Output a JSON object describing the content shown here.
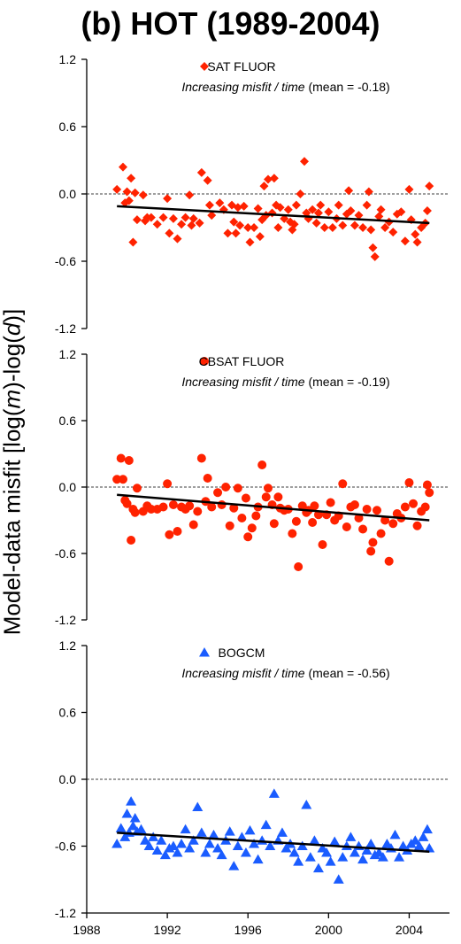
{
  "figure": {
    "title": "(b) HOT (1989-2004)",
    "ylabel_prefix": "Model-data misfit [log(",
    "ylabel_m": "m",
    "ylabel_mid": ")-log(",
    "ylabel_d": "d",
    "ylabel_suffix": ")]"
  },
  "chart_data": [
    {
      "type": "scatter",
      "marker": "diamond",
      "color": "#ff2200",
      "legend": "SAT FLUOR",
      "annotation_italic": "Increasing misfit / time",
      "annotation_rest": " (mean = -0.18)",
      "xlim": [
        1988,
        2006
      ],
      "ylim": [
        -1.2,
        1.2
      ],
      "yticks": [
        "1.2",
        "0.6",
        "0.0",
        "-0.6",
        "-1.2"
      ],
      "ytick_values": [
        1.2,
        0.6,
        0.0,
        -0.6,
        -1.2
      ],
      "zero_line": true,
      "trend": {
        "x": [
          1989.5,
          2005
        ],
        "y": [
          -0.11,
          -0.26
        ]
      },
      "x": [
        1989.5,
        1989.8,
        1989.9,
        1990.0,
        1990.1,
        1990.2,
        1990.3,
        1990.4,
        1990.5,
        1990.8,
        1990.9,
        1991.0,
        1991.2,
        1991.5,
        1991.8,
        1992.0,
        1992.1,
        1992.3,
        1992.5,
        1992.7,
        1992.9,
        1993.1,
        1993.2,
        1993.3,
        1993.6,
        1993.7,
        1994.0,
        1994.1,
        1994.2,
        1994.6,
        1994.8,
        1995.0,
        1995.2,
        1995.3,
        1995.4,
        1995.5,
        1995.6,
        1995.8,
        1996.0,
        1996.1,
        1996.3,
        1996.5,
        1996.6,
        1996.7,
        1996.8,
        1996.9,
        1997.0,
        1997.2,
        1997.3,
        1997.4,
        1997.5,
        1997.6,
        1997.8,
        1998.0,
        1998.1,
        1998.2,
        1998.3,
        1998.4,
        1998.6,
        1998.8,
        1998.9,
        1999.0,
        1999.2,
        1999.4,
        1999.5,
        1999.6,
        1999.8,
        2000.0,
        2000.2,
        2000.4,
        2000.5,
        2000.7,
        2000.9,
        2001.0,
        2001.1,
        2001.3,
        2001.5,
        2001.7,
        2001.9,
        2002.0,
        2002.1,
        2002.2,
        2002.3,
        2002.5,
        2002.6,
        2002.8,
        2003.0,
        2003.2,
        2003.4,
        2003.6,
        2003.8,
        2004.0,
        2004.1,
        2004.3,
        2004.4,
        2004.6,
        2004.8,
        2004.9,
        2005.0
      ],
      "y": [
        0.04,
        0.24,
        -0.08,
        0.02,
        -0.06,
        0.14,
        -0.43,
        0.01,
        -0.23,
        -0.01,
        -0.24,
        -0.21,
        -0.21,
        -0.27,
        -0.21,
        -0.04,
        -0.35,
        -0.22,
        -0.4,
        -0.27,
        -0.21,
        -0.01,
        -0.28,
        -0.22,
        -0.26,
        0.19,
        0.12,
        -0.1,
        -0.19,
        -0.08,
        -0.14,
        -0.35,
        -0.1,
        -0.25,
        -0.35,
        -0.12,
        -0.28,
        -0.11,
        -0.3,
        -0.43,
        -0.3,
        -0.13,
        -0.38,
        -0.23,
        0.07,
        -0.19,
        0.13,
        -0.17,
        0.14,
        -0.1,
        -0.3,
        -0.12,
        -0.22,
        -0.14,
        -0.25,
        -0.32,
        -0.27,
        -0.1,
        0.0,
        0.29,
        -0.17,
        -0.22,
        -0.14,
        -0.26,
        -0.17,
        -0.1,
        -0.3,
        -0.16,
        -0.3,
        -0.22,
        -0.1,
        -0.28,
        -0.18,
        0.03,
        -0.15,
        -0.28,
        -0.19,
        -0.3,
        -0.1,
        0.02,
        -0.32,
        -0.48,
        -0.56,
        -0.2,
        -0.14,
        -0.3,
        -0.25,
        -0.34,
        -0.18,
        -0.16,
        -0.42,
        0.04,
        -0.23,
        -0.36,
        -0.43,
        -0.3,
        -0.26,
        -0.15,
        0.07
      ]
    },
    {
      "type": "scatter",
      "marker": "circle",
      "color": "#ff2200",
      "legend": "CBSAT FLUOR",
      "annotation_italic": "Increasing misfit / time",
      "annotation_rest": " (mean = -0.19)",
      "xlim": [
        1988,
        2006
      ],
      "ylim": [
        -1.2,
        1.2
      ],
      "yticks": [
        "1.2",
        "0.6",
        "0.0",
        "-0.6",
        "-1.2"
      ],
      "ytick_values": [
        1.2,
        0.6,
        0.0,
        -0.6,
        -1.2
      ],
      "zero_line": true,
      "trend": {
        "x": [
          1989.5,
          2005
        ],
        "y": [
          -0.07,
          -0.3
        ]
      },
      "x": [
        1989.5,
        1989.7,
        1989.8,
        1989.9,
        1990.0,
        1990.1,
        1990.2,
        1990.3,
        1990.4,
        1990.5,
        1990.8,
        1991.0,
        1991.2,
        1991.5,
        1991.8,
        1992.0,
        1992.1,
        1992.3,
        1992.5,
        1992.7,
        1992.9,
        1993.1,
        1993.3,
        1993.5,
        1993.7,
        1993.9,
        1994.0,
        1994.2,
        1994.5,
        1994.7,
        1994.9,
        1995.1,
        1995.3,
        1995.5,
        1995.7,
        1995.9,
        1996.0,
        1996.2,
        1996.4,
        1996.5,
        1996.7,
        1996.9,
        1997.0,
        1997.2,
        1997.3,
        1997.5,
        1997.6,
        1997.8,
        1998.0,
        1998.2,
        1998.4,
        1998.5,
        1998.7,
        1998.9,
        1999.0,
        1999.2,
        1999.3,
        1999.5,
        1999.7,
        1999.9,
        2000.1,
        2000.3,
        2000.5,
        2000.7,
        2000.9,
        2001.1,
        2001.3,
        2001.5,
        2001.7,
        2001.9,
        2002.1,
        2002.2,
        2002.4,
        2002.6,
        2002.8,
        2003.0,
        2003.2,
        2003.4,
        2003.6,
        2003.8,
        2004.0,
        2004.2,
        2004.4,
        2004.6,
        2004.8,
        2004.9,
        2005.0
      ],
      "y": [
        0.07,
        0.26,
        0.07,
        -0.12,
        -0.15,
        0.24,
        -0.48,
        -0.2,
        -0.23,
        -0.01,
        -0.22,
        -0.17,
        -0.2,
        -0.2,
        -0.18,
        0.03,
        -0.43,
        -0.16,
        -0.4,
        -0.18,
        -0.2,
        -0.17,
        -0.34,
        -0.22,
        0.26,
        -0.13,
        0.08,
        -0.18,
        -0.05,
        -0.16,
        0.0,
        -0.35,
        -0.19,
        -0.01,
        -0.28,
        -0.1,
        -0.45,
        -0.37,
        -0.26,
        -0.18,
        0.2,
        -0.09,
        -0.01,
        -0.16,
        -0.33,
        -0.09,
        -0.19,
        -0.21,
        -0.2,
        -0.42,
        -0.31,
        -0.72,
        -0.17,
        -0.23,
        -0.21,
        -0.32,
        -0.17,
        -0.25,
        -0.52,
        -0.25,
        -0.14,
        -0.3,
        -0.26,
        0.03,
        -0.36,
        -0.18,
        -0.16,
        -0.28,
        -0.38,
        -0.2,
        -0.58,
        -0.5,
        -0.21,
        -0.42,
        -0.3,
        -0.67,
        -0.33,
        -0.24,
        -0.28,
        -0.18,
        0.04,
        -0.15,
        -0.35,
        -0.22,
        -0.18,
        0.02,
        -0.05
      ]
    },
    {
      "type": "scatter",
      "marker": "triangle",
      "color": "#1a5cff",
      "legend": "BOGCM",
      "annotation_italic": "Increasing misfit / time",
      "annotation_rest": " (mean = -0.56)",
      "xlim": [
        1988,
        2006
      ],
      "ylim": [
        -1.2,
        1.2
      ],
      "yticks": [
        "1.2",
        "0.6",
        "0.0",
        "-0.6",
        "-1.2"
      ],
      "ytick_values": [
        1.2,
        0.6,
        0.0,
        -0.6,
        -1.2
      ],
      "xtick_values": [
        1988,
        1992,
        1996,
        2000,
        2004
      ],
      "xtick_labels": [
        "1988",
        "1992",
        "1996",
        "2000",
        "2004"
      ],
      "zero_line": true,
      "trend": {
        "x": [
          1989.5,
          2005
        ],
        "y": [
          -0.48,
          -0.65
        ]
      },
      "x": [
        1989.5,
        1989.7,
        1989.9,
        1990.0,
        1990.1,
        1990.2,
        1990.3,
        1990.4,
        1990.5,
        1990.7,
        1990.9,
        1991.1,
        1991.3,
        1991.5,
        1991.7,
        1991.9,
        1992.1,
        1992.3,
        1992.5,
        1992.7,
        1992.9,
        1993.1,
        1993.3,
        1993.5,
        1993.7,
        1993.9,
        1994.1,
        1994.3,
        1994.5,
        1994.7,
        1994.9,
        1995.1,
        1995.3,
        1995.5,
        1995.7,
        1995.9,
        1996.1,
        1996.3,
        1996.5,
        1996.7,
        1996.9,
        1997.1,
        1997.3,
        1997.5,
        1997.7,
        1997.9,
        1998.1,
        1998.3,
        1998.5,
        1998.7,
        1998.9,
        1999.1,
        1999.3,
        1999.5,
        1999.7,
        1999.9,
        2000.1,
        2000.3,
        2000.5,
        2000.7,
        2000.9,
        2001.1,
        2001.3,
        2001.5,
        2001.7,
        2001.9,
        2002.1,
        2002.3,
        2002.5,
        2002.7,
        2002.9,
        2003.1,
        2003.3,
        2003.5,
        2003.7,
        2003.9,
        2004.1,
        2004.3,
        2004.5,
        2004.7,
        2004.9,
        2005.0
      ],
      "y": [
        -0.58,
        -0.44,
        -0.52,
        -0.31,
        -0.48,
        -0.2,
        -0.42,
        -0.35,
        -0.47,
        -0.45,
        -0.55,
        -0.6,
        -0.52,
        -0.64,
        -0.55,
        -0.68,
        -0.62,
        -0.6,
        -0.66,
        -0.58,
        -0.45,
        -0.62,
        -0.55,
        -0.25,
        -0.48,
        -0.66,
        -0.58,
        -0.5,
        -0.62,
        -0.68,
        -0.55,
        -0.47,
        -0.78,
        -0.6,
        -0.52,
        -0.66,
        -0.46,
        -0.58,
        -0.72,
        -0.55,
        -0.41,
        -0.6,
        -0.13,
        -0.55,
        -0.48,
        -0.62,
        -0.58,
        -0.66,
        -0.74,
        -0.6,
        -0.23,
        -0.7,
        -0.55,
        -0.8,
        -0.62,
        -0.66,
        -0.74,
        -0.56,
        -0.9,
        -0.7,
        -0.6,
        -0.52,
        -0.66,
        -0.6,
        -0.72,
        -0.64,
        -0.58,
        -0.68,
        -0.66,
        -0.7,
        -0.58,
        -0.62,
        -0.5,
        -0.7,
        -0.6,
        -0.64,
        -0.58,
        -0.55,
        -0.6,
        -0.52,
        -0.45,
        -0.62
      ]
    }
  ]
}
